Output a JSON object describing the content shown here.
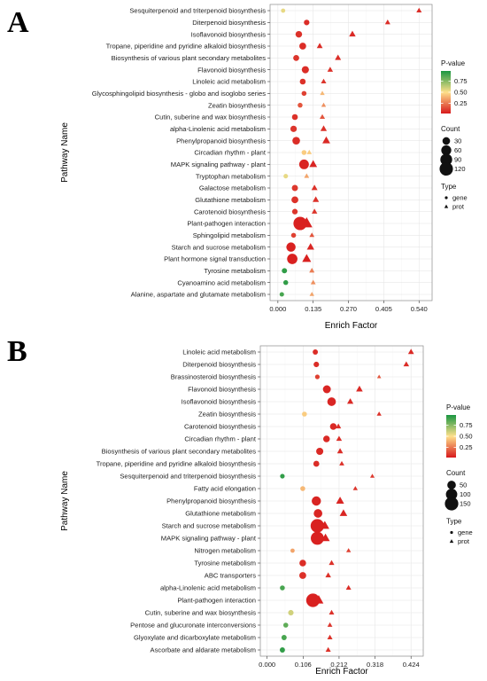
{
  "chart_data": [
    {
      "type": "scatter",
      "panel_label": "A",
      "xlabel": "Enrich Factor",
      "ylabel": "Pathway Name",
      "xlim": [
        -0.03,
        0.59
      ],
      "xticks": [
        0.0,
        0.135,
        0.27,
        0.405,
        0.54
      ],
      "xtick_labels": [
        "0.000",
        "0.135",
        "0.270",
        "0.405",
        "0.540"
      ],
      "grid": true,
      "legend_placement": "right",
      "pathways": [
        "Sesquiterpenoid and triterpenoid biosynthesis",
        "Diterpenoid biosynthesis",
        "Isoflavonoid biosynthesis",
        "Tropane, piperidine and pyridine alkaloid biosynthesis",
        "Biosynthesis of various plant secondary metabolites",
        "Flavonoid biosynthesis",
        "Linoleic acid metabolism",
        "Glycosphingolipid biosynthesis - globo and isoglobo series",
        "Zeatin biosynthesis",
        "Cutin, suberine and wax biosynthesis",
        "alpha-Linolenic acid metabolism",
        "Phenylpropanoid biosynthesis",
        "Circadian rhythm - plant",
        "MAPK signaling pathway - plant",
        "Tryptophan metabolism",
        "Galactose metabolism",
        "Glutathione metabolism",
        "Carotenoid biosynthesis",
        "Plant-pathogen interaction",
        "Sphingolipid metabolism",
        "Starch and sucrose metabolism",
        "Plant hormone signal transduction",
        "Tyrosine metabolism",
        "Cyanoamino acid metabolism",
        "Alanine, aspartate and glutamate metabolism"
      ],
      "gene": [
        {
          "x": 0.02,
          "count": 5,
          "p": 0.55
        },
        {
          "x": 0.11,
          "count": 12,
          "p": 0.05
        },
        {
          "x": 0.08,
          "count": 20,
          "p": 0.06
        },
        {
          "x": 0.095,
          "count": 22,
          "p": 0.05
        },
        {
          "x": 0.07,
          "count": 15,
          "p": 0.07
        },
        {
          "x": 0.105,
          "count": 25,
          "p": 0.05
        },
        {
          "x": 0.095,
          "count": 14,
          "p": 0.06
        },
        {
          "x": 0.1,
          "count": 8,
          "p": 0.1
        },
        {
          "x": 0.085,
          "count": 8,
          "p": 0.15
        },
        {
          "x": 0.065,
          "count": 14,
          "p": 0.06
        },
        {
          "x": 0.06,
          "count": 18,
          "p": 0.07
        },
        {
          "x": 0.07,
          "count": 30,
          "p": 0.05
        },
        {
          "x": 0.1,
          "count": 8,
          "p": 0.45
        },
        {
          "x": 0.1,
          "count": 55,
          "p": 0.03
        },
        {
          "x": 0.03,
          "count": 6,
          "p": 0.55
        },
        {
          "x": 0.065,
          "count": 16,
          "p": 0.08
        },
        {
          "x": 0.065,
          "count": 22,
          "p": 0.06
        },
        {
          "x": 0.065,
          "count": 12,
          "p": 0.07
        },
        {
          "x": 0.085,
          "count": 120,
          "p": 0.02
        },
        {
          "x": 0.06,
          "count": 8,
          "p": 0.1
        },
        {
          "x": 0.05,
          "count": 50,
          "p": 0.02
        },
        {
          "x": 0.055,
          "count": 65,
          "p": 0.02
        },
        {
          "x": 0.025,
          "count": 10,
          "p": 0.95
        },
        {
          "x": 0.03,
          "count": 8,
          "p": 0.95
        },
        {
          "x": 0.015,
          "count": 6,
          "p": 0.9
        }
      ],
      "prot": [
        {
          "x": 0.54,
          "count": 12,
          "p": 0.05
        },
        {
          "x": 0.42,
          "count": 12,
          "p": 0.05
        },
        {
          "x": 0.285,
          "count": 22,
          "p": 0.04
        },
        {
          "x": 0.16,
          "count": 16,
          "p": 0.05
        },
        {
          "x": 0.23,
          "count": 18,
          "p": 0.05
        },
        {
          "x": 0.2,
          "count": 14,
          "p": 0.06
        },
        {
          "x": 0.175,
          "count": 12,
          "p": 0.07
        },
        {
          "x": 0.17,
          "count": 8,
          "p": 0.4
        },
        {
          "x": 0.175,
          "count": 8,
          "p": 0.3
        },
        {
          "x": 0.17,
          "count": 12,
          "p": 0.15
        },
        {
          "x": 0.175,
          "count": 20,
          "p": 0.06
        },
        {
          "x": 0.185,
          "count": 35,
          "p": 0.04
        },
        {
          "x": 0.12,
          "count": 10,
          "p": 0.45
        },
        {
          "x": 0.135,
          "count": 35,
          "p": 0.03
        },
        {
          "x": 0.11,
          "count": 10,
          "p": 0.35
        },
        {
          "x": 0.14,
          "count": 18,
          "p": 0.06
        },
        {
          "x": 0.145,
          "count": 20,
          "p": 0.06
        },
        {
          "x": 0.14,
          "count": 14,
          "p": 0.07
        },
        {
          "x": 0.11,
          "count": 90,
          "p": 0.02
        },
        {
          "x": 0.13,
          "count": 10,
          "p": 0.15
        },
        {
          "x": 0.125,
          "count": 30,
          "p": 0.03
        },
        {
          "x": 0.11,
          "count": 50,
          "p": 0.02
        },
        {
          "x": 0.13,
          "count": 12,
          "p": 0.25
        },
        {
          "x": 0.135,
          "count": 10,
          "p": 0.3
        },
        {
          "x": 0.13,
          "count": 8,
          "p": 0.35
        }
      ],
      "legend": {
        "pvalue_title": "P-value",
        "pvalue_ticks": [
          "0.75",
          "0.50",
          "0.25"
        ],
        "count_title": "Count",
        "count_entries": [
          "30",
          "60",
          "90",
          "120"
        ],
        "type_title": "Type",
        "type_entries": [
          "gene",
          "prot"
        ]
      }
    },
    {
      "type": "scatter",
      "panel_label": "B",
      "xlabel": "Enrich Factor",
      "ylabel": "Pathway Name",
      "xlim": [
        -0.02,
        0.46
      ],
      "xticks": [
        0.0,
        0.106,
        0.212,
        0.318,
        0.424
      ],
      "xtick_labels": [
        "0.000",
        "0.106",
        "0.212",
        "0.318",
        "0.424"
      ],
      "grid": true,
      "legend_placement": "right",
      "pathways": [
        "Linoleic acid metabolism",
        "Diterpenoid biosynthesis",
        "Brassinosteroid biosynthesis",
        "Flavonoid biosynthesis",
        "Isoflavonoid biosynthesis",
        "Zeatin biosynthesis",
        "Carotenoid biosynthesis",
        "Circadian rhythm - plant",
        "Biosynthesis of various plant secondary metabolites",
        "Tropane, piperidine and pyridine alkaloid biosynthesis",
        "Sesquiterpenoid and triterpenoid biosynthesis",
        "Fatty acid elongation",
        "Phenylpropanoid biosynthesis",
        "Glutathione metabolism",
        "Starch and sucrose metabolism",
        "MAPK signaling pathway - plant",
        "Nitrogen metabolism",
        "Tyrosine metabolism",
        "ABC transporters",
        "alpha-Linolenic acid metabolism",
        "Plant-pathogen interaction",
        "Cutin, suberine and wax biosynthesis",
        "Pentose and glucuronate interconversions",
        "Glyoxylate and dicarboxylate metabolism",
        "Ascorbate and aldarate metabolism"
      ],
      "gene": [
        {
          "x": 0.142,
          "count": 12,
          "p": 0.05
        },
        {
          "x": 0.145,
          "count": 14,
          "p": 0.05
        },
        {
          "x": 0.148,
          "count": 8,
          "p": 0.1
        },
        {
          "x": 0.176,
          "count": 40,
          "p": 0.03
        },
        {
          "x": 0.19,
          "count": 50,
          "p": 0.03
        },
        {
          "x": 0.11,
          "count": 10,
          "p": 0.45
        },
        {
          "x": 0.195,
          "count": 25,
          "p": 0.04
        },
        {
          "x": 0.175,
          "count": 25,
          "p": 0.04
        },
        {
          "x": 0.155,
          "count": 30,
          "p": 0.04
        },
        {
          "x": 0.145,
          "count": 18,
          "p": 0.05
        },
        {
          "x": 0.045,
          "count": 8,
          "p": 0.95
        },
        {
          "x": 0.105,
          "count": 10,
          "p": 0.4
        },
        {
          "x": 0.145,
          "count": 60,
          "p": 0.03
        },
        {
          "x": 0.15,
          "count": 50,
          "p": 0.03
        },
        {
          "x": 0.148,
          "count": 150,
          "p": 0.02
        },
        {
          "x": 0.148,
          "count": 140,
          "p": 0.02
        },
        {
          "x": 0.075,
          "count": 6,
          "p": 0.35
        },
        {
          "x": 0.105,
          "count": 25,
          "p": 0.05
        },
        {
          "x": 0.105,
          "count": 28,
          "p": 0.06
        },
        {
          "x": 0.045,
          "count": 10,
          "p": 0.9
        },
        {
          "x": 0.135,
          "count": 150,
          "p": 0.02
        },
        {
          "x": 0.07,
          "count": 14,
          "p": 0.6
        },
        {
          "x": 0.055,
          "count": 10,
          "p": 0.85
        },
        {
          "x": 0.05,
          "count": 12,
          "p": 0.9
        },
        {
          "x": 0.045,
          "count": 12,
          "p": 0.95
        }
      ],
      "prot": [
        {
          "x": 0.424,
          "count": 20,
          "p": 0.04
        },
        {
          "x": 0.41,
          "count": 18,
          "p": 0.05
        },
        {
          "x": 0.33,
          "count": 6,
          "p": 0.15
        },
        {
          "x": 0.272,
          "count": 28,
          "p": 0.04
        },
        {
          "x": 0.245,
          "count": 24,
          "p": 0.04
        },
        {
          "x": 0.33,
          "count": 10,
          "p": 0.06
        },
        {
          "x": 0.21,
          "count": 16,
          "p": 0.05
        },
        {
          "x": 0.212,
          "count": 18,
          "p": 0.05
        },
        {
          "x": 0.215,
          "count": 20,
          "p": 0.05
        },
        {
          "x": 0.22,
          "count": 12,
          "p": 0.06
        },
        {
          "x": 0.31,
          "count": 8,
          "p": 0.08
        },
        {
          "x": 0.26,
          "count": 10,
          "p": 0.07
        },
        {
          "x": 0.215,
          "count": 45,
          "p": 0.03
        },
        {
          "x": 0.225,
          "count": 40,
          "p": 0.03
        },
        {
          "x": 0.17,
          "count": 60,
          "p": 0.02
        },
        {
          "x": 0.172,
          "count": 55,
          "p": 0.02
        },
        {
          "x": 0.24,
          "count": 10,
          "p": 0.1
        },
        {
          "x": 0.19,
          "count": 16,
          "p": 0.06
        },
        {
          "x": 0.18,
          "count": 18,
          "p": 0.06
        },
        {
          "x": 0.24,
          "count": 14,
          "p": 0.05
        },
        {
          "x": 0.152,
          "count": 70,
          "p": 0.02
        },
        {
          "x": 0.19,
          "count": 14,
          "p": 0.06
        },
        {
          "x": 0.185,
          "count": 12,
          "p": 0.07
        },
        {
          "x": 0.185,
          "count": 14,
          "p": 0.06
        },
        {
          "x": 0.18,
          "count": 14,
          "p": 0.06
        }
      ],
      "legend": {
        "pvalue_title": "P-value",
        "pvalue_ticks": [
          "0.75",
          "0.50",
          "0.25"
        ],
        "count_title": "Count",
        "count_entries": [
          "50",
          "100",
          "150"
        ],
        "type_title": "Type",
        "type_entries": [
          "gene",
          "prot"
        ]
      }
    }
  ],
  "colors": {
    "pvalue_low": "#d7191c",
    "pvalue_mid": "#fee08b",
    "pvalue_high": "#1a9641",
    "grid": "#e6e6e6",
    "panel_border": "#8c8c8c"
  }
}
